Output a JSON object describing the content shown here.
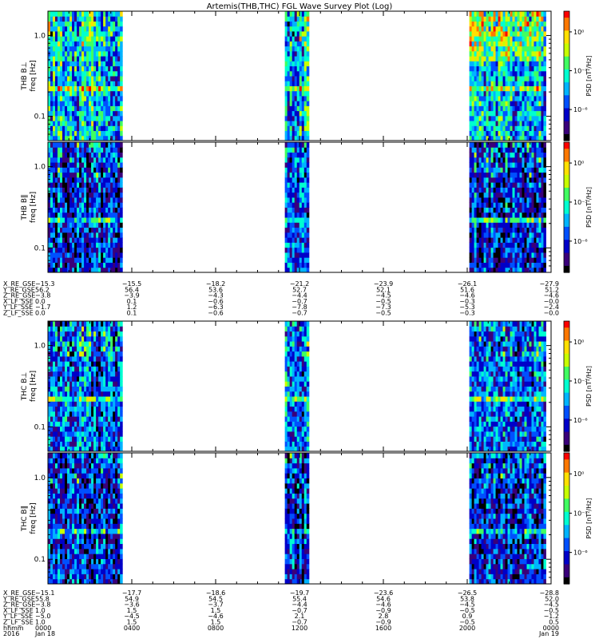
{
  "chart_data": {
    "type": "heatmap",
    "title": "Artemis(THB,THC) FGL Wave Survey Plot (Log)",
    "colormap": [
      "#000000",
      "#3a007a",
      "#0000c8",
      "#0050ff",
      "#00b4ff",
      "#00ffd0",
      "#40ff60",
      "#c8ff00",
      "#ffe000",
      "#ff7800",
      "#ff0000"
    ],
    "x_range_hours": [
      0,
      24
    ],
    "y_scale": "log",
    "y_range_hz": [
      0.05,
      2.0
    ],
    "y_ticks": [
      {
        "v": 1.0,
        "label": "1.0"
      },
      {
        "v": 0.1,
        "label": "0.1"
      }
    ],
    "colorbar_label": "PSD [nT²/Hz]",
    "colorbar_ticks_top": [
      {
        "frac": 0.16,
        "label": "10⁰"
      },
      {
        "frac": 0.46,
        "label": "10⁻³"
      },
      {
        "frac": 0.76,
        "label": "10⁻⁶"
      }
    ],
    "colorbar_ticks_bottom": [
      {
        "frac": 0.16,
        "label": "10⁰"
      },
      {
        "frac": 0.46,
        "label": "10⁻³"
      },
      {
        "frac": 0.76,
        "label": "10⁻⁶"
      }
    ],
    "data_intervals_hours": [
      [
        0.0,
        3.55
      ],
      [
        11.3,
        12.45
      ],
      [
        20.1,
        23.75
      ]
    ],
    "panels": [
      {
        "probe": "THB",
        "ylabel": "THB B⊥",
        "ylabel2": "freq [Hz]",
        "level": 0.6
      },
      {
        "probe": "THB",
        "ylabel": "THB B∥",
        "ylabel2": "freq [Hz]",
        "level": 0.4
      },
      {
        "probe": "THC",
        "ylabel": "THC B⊥",
        "ylabel2": "freq [Hz]",
        "level": 0.5
      },
      {
        "probe": "THC",
        "ylabel": "THC B∥",
        "ylabel2": "freq [Hz]",
        "level": 0.4
      }
    ],
    "ephemeris_thb": {
      "tick_hours": [
        0,
        4,
        8,
        12,
        16,
        20,
        24
      ],
      "rows": [
        {
          "name": "X_RE_GSE",
          "values": [
            "−15.3",
            "−15.5",
            "−18.2",
            "−21.2",
            "−23.9",
            "−26.1",
            "−27.9"
          ]
        },
        {
          "name": "Y_RE_GSE",
          "values": [
            "56.2",
            "56.4",
            "53.6",
            "52.7",
            "52.1",
            "51.6",
            "51.2"
          ]
        },
        {
          "name": "Z_RE_GSE",
          "values": [
            "−3.8",
            "−3.9",
            "−4.3",
            "−4.4",
            "−4.5",
            "−4.6",
            "−4.6"
          ]
        },
        {
          "name": "X_LF_SSE",
          "values": [
            "0.0",
            "0.1",
            "−0.6",
            "−0.7",
            "−0.5",
            "−0.3",
            "−0.0"
          ]
        },
        {
          "name": "Y_LF_SSE",
          "values": [
            "−1.7",
            "1.2",
            "−6.3",
            "−7.8",
            "−7.3",
            "−5.3",
            "−2.4"
          ]
        },
        {
          "name": "Z_LF_SSE",
          "values": [
            "0.0",
            "0.1",
            "−0.6",
            "−0.7",
            "−0.5",
            "−0.3",
            "−0.0"
          ]
        }
      ]
    },
    "ephemeris_thc": {
      "tick_hours": [
        0,
        4,
        8,
        12,
        16,
        20,
        24
      ],
      "rows": [
        {
          "name": "X_RE_GSE",
          "values": [
            "−15.1",
            "−17.7",
            "−18.6",
            "−19.7",
            "−23.6",
            "−26.5",
            "−28.8"
          ]
        },
        {
          "name": "Y_RE_GSE",
          "values": [
            "55.8",
            "54.9",
            "54.5",
            "55.4",
            "54.6",
            "53.8",
            "52.0"
          ]
        },
        {
          "name": "Z_RE_GSE",
          "values": [
            "−3.8",
            "−3.6",
            "−3.7",
            "−4.4",
            "−4.6",
            "−4.5",
            "−4.5"
          ]
        },
        {
          "name": "X_LF_SSE",
          "values": [
            "1.0",
            "1.5",
            "1.5",
            "−0.7",
            "−0.9",
            "−0.5",
            "−0.5"
          ]
        },
        {
          "name": "Y_LF_SSE",
          "values": [
            "−5.0",
            "−4.5",
            "−4.6",
            "2.1",
            "2.8",
            "0.9",
            "−1.2"
          ]
        },
        {
          "name": "Z_LF_SSE",
          "values": [
            "1.0",
            "1.5",
            "1.5",
            "−0.7",
            "−0.9",
            "−0.5",
            "0.5"
          ]
        },
        {
          "name": "hhmm",
          "values": [
            "0000",
            "0400",
            "0800",
            "1200",
            "1600",
            "2000",
            "0000"
          ]
        },
        {
          "name": "2016",
          "values": [
            "Jan 18",
            "",
            "",
            "",
            "",
            "",
            "Jan 19"
          ]
        }
      ]
    }
  }
}
